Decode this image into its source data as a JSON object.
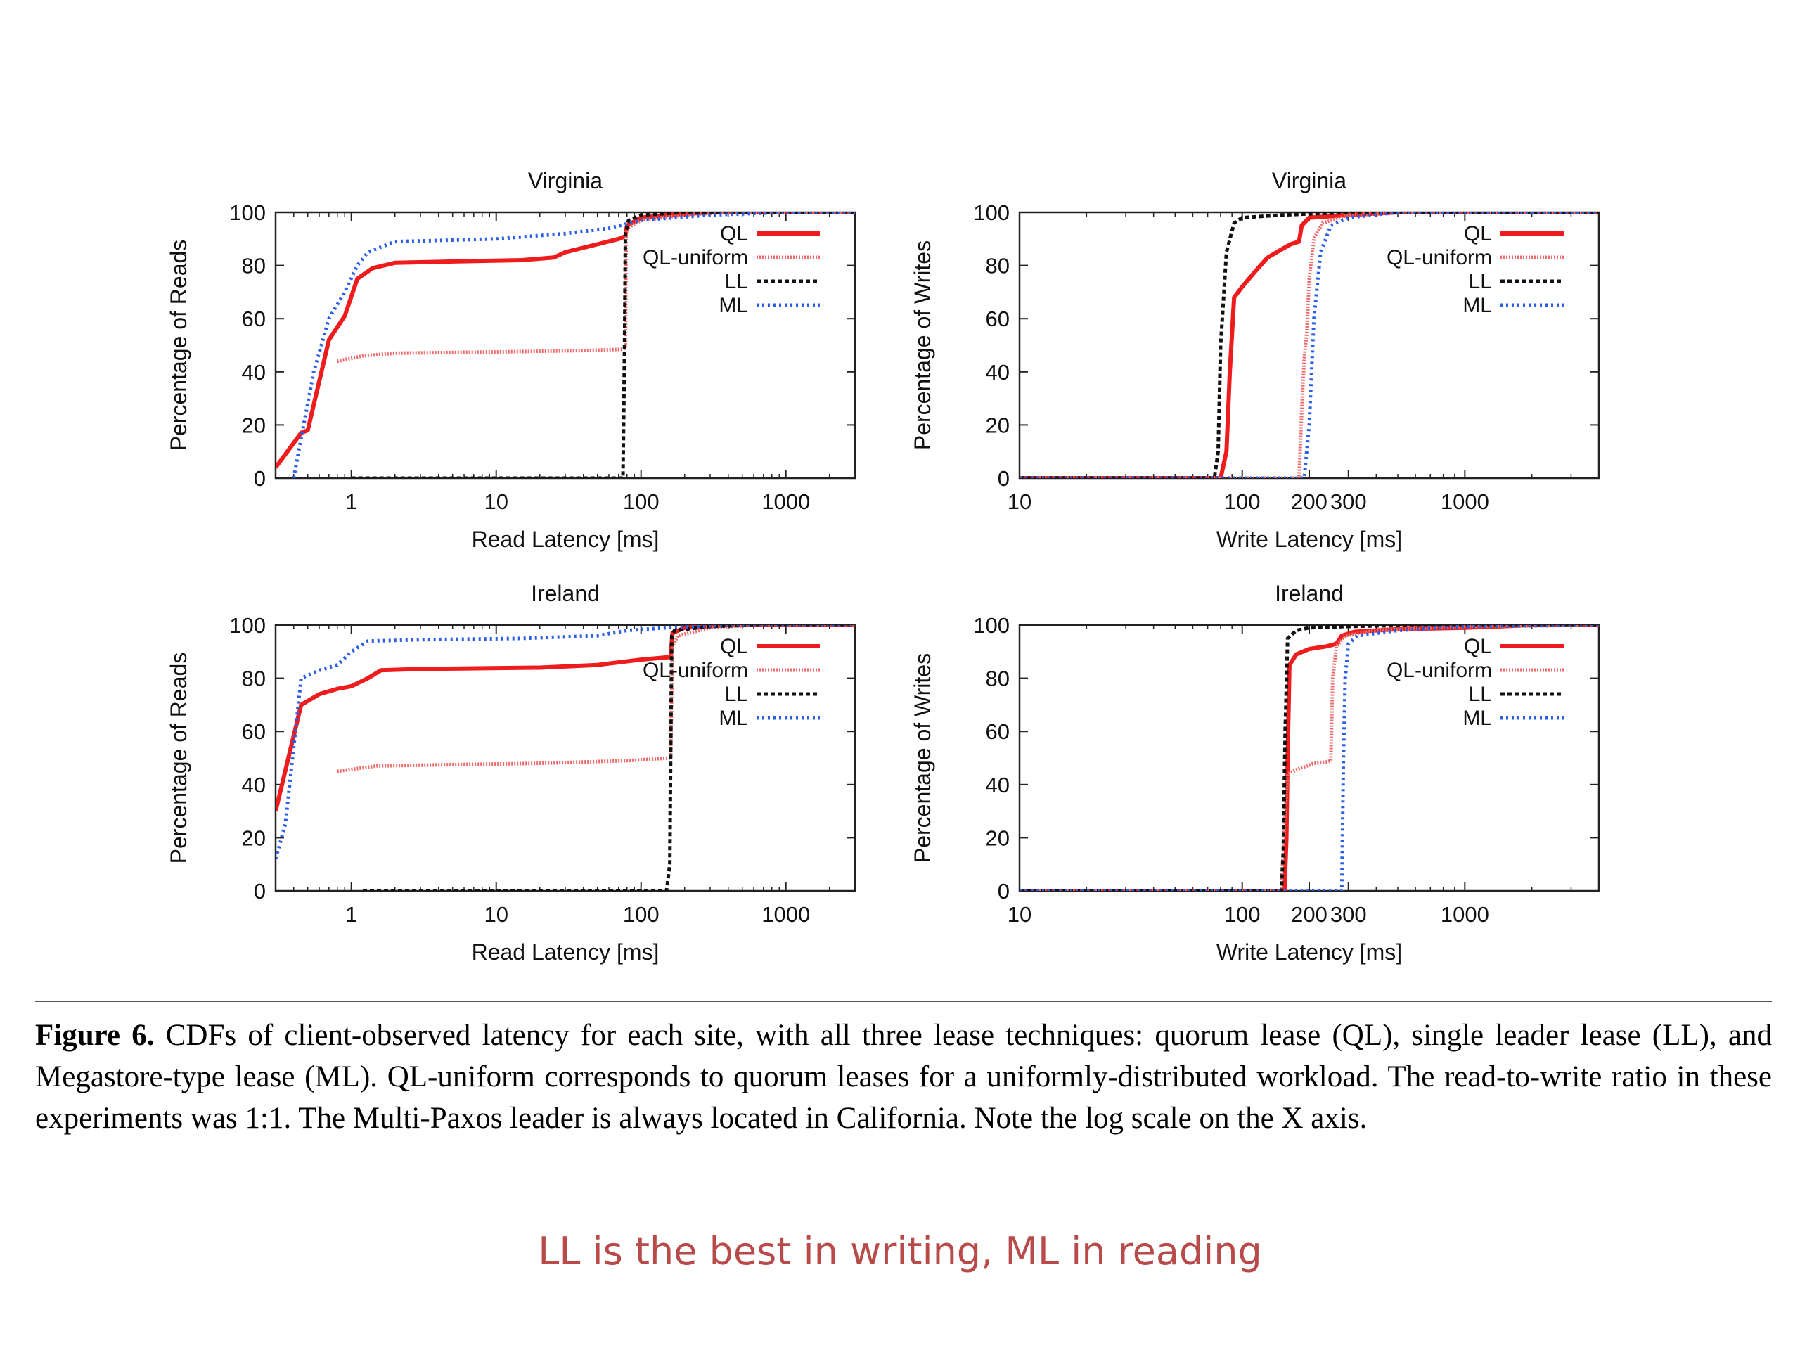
{
  "colors": {
    "ql": "#ee1c1c",
    "ql_uniform": "#ee6a6a",
    "ll": "#111111",
    "ml": "#2a5de8",
    "takeaway": "#b84a4a"
  },
  "legend_labels": [
    "QL",
    "QL-uniform",
    "LL",
    "ML"
  ],
  "chart_data": [
    {
      "type": "line",
      "title": "Virginia",
      "xlabel": "Read Latency [ms]",
      "ylabel": "Percentage of Reads",
      "x_scale": "log",
      "xlim": [
        0.3,
        3000
      ],
      "ylim": [
        0,
        100
      ],
      "xticks": [
        1,
        10,
        100,
        1000
      ],
      "xtick_labels": [
        "1",
        "10",
        "100",
        "1000"
      ],
      "yticks": [
        0,
        20,
        40,
        60,
        80,
        100
      ],
      "legend_position": "top-right",
      "series": [
        {
          "name": "QL",
          "points": [
            [
              0.3,
              4
            ],
            [
              0.45,
              17
            ],
            [
              0.5,
              18
            ],
            [
              0.7,
              52
            ],
            [
              0.9,
              61
            ],
            [
              1.1,
              75
            ],
            [
              1.4,
              79
            ],
            [
              2,
              81
            ],
            [
              5,
              81.5
            ],
            [
              15,
              82
            ],
            [
              25,
              83
            ],
            [
              30,
              85
            ],
            [
              50,
              88
            ],
            [
              70,
              90
            ],
            [
              78,
              91
            ],
            [
              80,
              95
            ],
            [
              100,
              98
            ],
            [
              150,
              99
            ],
            [
              300,
              100
            ],
            [
              3000,
              100
            ]
          ]
        },
        {
          "name": "QL-uniform",
          "points": [
            [
              0.8,
              44
            ],
            [
              1.2,
              46
            ],
            [
              2,
              47
            ],
            [
              10,
              47.5
            ],
            [
              40,
              48
            ],
            [
              75,
              48.5
            ],
            [
              78,
              49
            ],
            [
              79,
              92
            ],
            [
              80,
              94
            ],
            [
              100,
              97
            ],
            [
              200,
              99
            ],
            [
              400,
              100
            ],
            [
              3000,
              100
            ]
          ]
        },
        {
          "name": "LL",
          "points": [
            [
              1,
              0
            ],
            [
              50,
              0
            ],
            [
              75,
              0
            ],
            [
              77,
              50
            ],
            [
              78,
              92
            ],
            [
              82,
              97
            ],
            [
              100,
              99
            ],
            [
              200,
              100
            ],
            [
              3000,
              100
            ]
          ]
        },
        {
          "name": "ML",
          "points": [
            [
              0.4,
              0
            ],
            [
              0.45,
              15
            ],
            [
              0.55,
              40
            ],
            [
              0.7,
              60
            ],
            [
              0.9,
              70
            ],
            [
              1.1,
              80
            ],
            [
              1.3,
              85
            ],
            [
              2,
              89
            ],
            [
              10,
              90
            ],
            [
              30,
              92
            ],
            [
              60,
              94
            ],
            [
              100,
              97
            ],
            [
              300,
              99
            ],
            [
              1000,
              100
            ],
            [
              3000,
              100
            ]
          ]
        }
      ]
    },
    {
      "type": "line",
      "title": "Virginia",
      "xlabel": "Write Latency [ms]",
      "ylabel": "Percentage of Writes",
      "x_scale": "log",
      "xlim": [
        10,
        4000
      ],
      "ylim": [
        0,
        100
      ],
      "xticks": [
        10,
        100,
        200,
        300,
        1000
      ],
      "xtick_labels": [
        "10",
        "100",
        "200",
        "300",
        "1000"
      ],
      "yticks": [
        0,
        20,
        40,
        60,
        80,
        100
      ],
      "legend_position": "top-right",
      "series": [
        {
          "name": "QL",
          "points": [
            [
              10,
              0
            ],
            [
              80,
              0
            ],
            [
              85,
              10
            ],
            [
              88,
              40
            ],
            [
              92,
              68
            ],
            [
              100,
              72
            ],
            [
              115,
              78
            ],
            [
              130,
              83
            ],
            [
              150,
              86
            ],
            [
              165,
              88
            ],
            [
              180,
              89
            ],
            [
              185,
              95
            ],
            [
              200,
              98
            ],
            [
              300,
              99
            ],
            [
              500,
              100
            ],
            [
              4000,
              100
            ]
          ]
        },
        {
          "name": "QL-uniform",
          "points": [
            [
              10,
              0
            ],
            [
              180,
              0
            ],
            [
              185,
              25
            ],
            [
              190,
              45
            ],
            [
              195,
              55
            ],
            [
              200,
              75
            ],
            [
              210,
              90
            ],
            [
              230,
              96
            ],
            [
              300,
              99
            ],
            [
              500,
              100
            ],
            [
              4000,
              100
            ]
          ]
        },
        {
          "name": "LL",
          "points": [
            [
              10,
              0
            ],
            [
              75,
              0
            ],
            [
              78,
              10
            ],
            [
              80,
              50
            ],
            [
              85,
              85
            ],
            [
              92,
              96
            ],
            [
              100,
              98
            ],
            [
              150,
              99
            ],
            [
              300,
              100
            ],
            [
              4000,
              100
            ]
          ]
        },
        {
          "name": "ML",
          "points": [
            [
              10,
              0
            ],
            [
              190,
              0
            ],
            [
              200,
              20
            ],
            [
              210,
              60
            ],
            [
              225,
              85
            ],
            [
              250,
              95
            ],
            [
              300,
              98
            ],
            [
              500,
              100
            ],
            [
              4000,
              100
            ]
          ]
        }
      ]
    },
    {
      "type": "line",
      "title": "Ireland",
      "xlabel": "Read Latency [ms]",
      "ylabel": "Percentage of Reads",
      "x_scale": "log",
      "xlim": [
        0.3,
        3000
      ],
      "ylim": [
        0,
        100
      ],
      "xticks": [
        1,
        10,
        100,
        1000
      ],
      "xtick_labels": [
        "1",
        "10",
        "100",
        "1000"
      ],
      "yticks": [
        0,
        20,
        40,
        60,
        80,
        100
      ],
      "legend_position": "top-right",
      "series": [
        {
          "name": "QL",
          "points": [
            [
              0.3,
              30
            ],
            [
              0.45,
              70
            ],
            [
              0.6,
              74
            ],
            [
              0.8,
              76
            ],
            [
              1,
              77
            ],
            [
              1.3,
              80
            ],
            [
              1.6,
              83
            ],
            [
              3,
              83.5
            ],
            [
              20,
              84
            ],
            [
              50,
              85
            ],
            [
              100,
              87
            ],
            [
              160,
              88
            ],
            [
              165,
              97
            ],
            [
              200,
              99
            ],
            [
              400,
              100
            ],
            [
              3000,
              100
            ]
          ]
        },
        {
          "name": "QL-uniform",
          "points": [
            [
              0.8,
              45
            ],
            [
              1.5,
              47
            ],
            [
              5,
              47.5
            ],
            [
              20,
              48
            ],
            [
              80,
              49
            ],
            [
              160,
              50
            ],
            [
              165,
              92
            ],
            [
              180,
              96
            ],
            [
              300,
              99
            ],
            [
              600,
              100
            ],
            [
              3000,
              100
            ]
          ]
        },
        {
          "name": "LL",
          "points": [
            [
              1.2,
              0
            ],
            [
              10,
              0
            ],
            [
              100,
              0
            ],
            [
              150,
              0
            ],
            [
              158,
              10
            ],
            [
              160,
              50
            ],
            [
              163,
              96
            ],
            [
              170,
              98
            ],
            [
              300,
              99.5
            ],
            [
              600,
              100
            ],
            [
              3000,
              100
            ]
          ]
        },
        {
          "name": "ML",
          "points": [
            [
              0.3,
              12
            ],
            [
              0.35,
              25
            ],
            [
              0.45,
              80
            ],
            [
              0.6,
              83
            ],
            [
              0.8,
              85
            ],
            [
              1,
              90
            ],
            [
              1.3,
              94
            ],
            [
              3,
              94.5
            ],
            [
              15,
              95
            ],
            [
              50,
              96
            ],
            [
              80,
              98
            ],
            [
              150,
              99
            ],
            [
              400,
              100
            ],
            [
              3000,
              100
            ]
          ]
        }
      ]
    },
    {
      "type": "line",
      "title": "Ireland",
      "xlabel": "Write Latency [ms]",
      "ylabel": "Percentage of Writes",
      "x_scale": "log",
      "xlim": [
        10,
        4000
      ],
      "ylim": [
        0,
        100
      ],
      "xticks": [
        10,
        100,
        200,
        300,
        1000
      ],
      "xtick_labels": [
        "10",
        "100",
        "200",
        "300",
        "1000"
      ],
      "yticks": [
        0,
        20,
        40,
        60,
        80,
        100
      ],
      "legend_position": "top-right",
      "series": [
        {
          "name": "QL",
          "points": [
            [
              10,
              0
            ],
            [
              155,
              0
            ],
            [
              158,
              20
            ],
            [
              160,
              50
            ],
            [
              163,
              85
            ],
            [
              175,
              89
            ],
            [
              200,
              91
            ],
            [
              240,
              92
            ],
            [
              265,
              93
            ],
            [
              280,
              96
            ],
            [
              320,
              97.5
            ],
            [
              500,
              98.5
            ],
            [
              1000,
              99
            ],
            [
              2000,
              100
            ],
            [
              4000,
              100
            ]
          ]
        },
        {
          "name": "QL-uniform",
          "points": [
            [
              10,
              0
            ],
            [
              150,
              0
            ],
            [
              155,
              25
            ],
            [
              160,
              44
            ],
            [
              180,
              46
            ],
            [
              210,
              48
            ],
            [
              240,
              48.5
            ],
            [
              250,
              49
            ],
            [
              255,
              80
            ],
            [
              265,
              92
            ],
            [
              290,
              96
            ],
            [
              400,
              98
            ],
            [
              1000,
              99.5
            ],
            [
              4000,
              100
            ]
          ]
        },
        {
          "name": "LL",
          "points": [
            [
              10,
              0
            ],
            [
              150,
              0
            ],
            [
              153,
              15
            ],
            [
              156,
              60
            ],
            [
              160,
              95
            ],
            [
              175,
              98
            ],
            [
              200,
              99
            ],
            [
              300,
              99.5
            ],
            [
              600,
              100
            ],
            [
              4000,
              100
            ]
          ]
        },
        {
          "name": "ML",
          "points": [
            [
              10,
              0
            ],
            [
              280,
              0
            ],
            [
              285,
              50
            ],
            [
              290,
              80
            ],
            [
              300,
              93
            ],
            [
              330,
              96
            ],
            [
              500,
              98
            ],
            [
              1000,
              99.5
            ],
            [
              4000,
              100
            ]
          ]
        }
      ]
    }
  ],
  "caption": {
    "label": "Figure 6.",
    "text": " CDFs of client-observed latency for each site, with all three lease techniques: quorum lease (QL), single leader lease (LL), and Megastore-type lease (ML). QL-uniform corresponds to quorum leases for a uniformly-distributed workload. The read-to-write ratio in these experiments was 1:1. The Multi-Paxos leader is always located in California. Note the log scale on the X axis."
  },
  "takeaway": "LL is the best in writing, ML in reading"
}
